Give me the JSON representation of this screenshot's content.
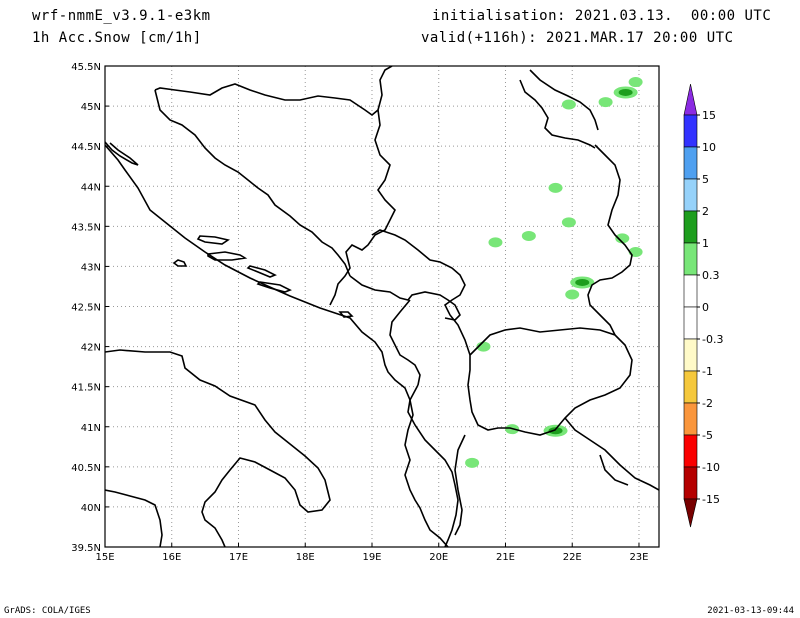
{
  "header": {
    "model": "wrf-nmmE_v3.9.1-e3km",
    "variable": "1h Acc.Snow [cm/1h]",
    "initialisation": "initialisation: 2021.03.13.  00:00 UTC",
    "valid": "valid(+116h): 2021.MAR.17 20:00 UTC"
  },
  "footer": {
    "left": "GrADS: COLA/IGES",
    "right": "2021-03-13-09:44"
  },
  "map": {
    "lon_range": [
      15,
      23.3
    ],
    "lat_range": [
      39.5,
      45.5
    ],
    "lon_ticks": [
      "15E",
      "16E",
      "17E",
      "18E",
      "19E",
      "20E",
      "21E",
      "22E",
      "23E"
    ],
    "lat_ticks": [
      "45.5N",
      "45N",
      "44.5N",
      "44N",
      "43.5N",
      "43N",
      "42.5N",
      "42N",
      "41.5N",
      "41N",
      "40.5N",
      "40N",
      "39.5N"
    ],
    "grid": true,
    "snow_areas": [
      {
        "lon": 22.8,
        "lat": 45.17,
        "level": "1-2"
      },
      {
        "lon": 22.95,
        "lat": 45.3,
        "level": "0.3-1"
      },
      {
        "lon": 22.5,
        "lat": 45.05,
        "level": "0.3-1"
      },
      {
        "lon": 21.95,
        "lat": 45.02,
        "level": "0.3-1"
      },
      {
        "lon": 21.75,
        "lat": 43.98,
        "level": "0.3-1"
      },
      {
        "lon": 22.15,
        "lat": 42.8,
        "level": "1-2"
      },
      {
        "lon": 22.0,
        "lat": 42.65,
        "level": "0.3-1"
      },
      {
        "lon": 22.75,
        "lat": 43.35,
        "level": "0.3-1"
      },
      {
        "lon": 22.95,
        "lat": 43.18,
        "level": "0.3-1"
      },
      {
        "lon": 21.75,
        "lat": 40.95,
        "level": "1-2"
      },
      {
        "lon": 21.1,
        "lat": 40.97,
        "level": "0.3-1"
      },
      {
        "lon": 20.67,
        "lat": 42.0,
        "level": "0.3-1"
      },
      {
        "lon": 20.5,
        "lat": 40.55,
        "level": "0.3-1"
      },
      {
        "lon": 21.95,
        "lat": 43.55,
        "level": "0.3-1"
      },
      {
        "lon": 21.35,
        "lat": 43.38,
        "level": "0.3-1"
      },
      {
        "lon": 20.85,
        "lat": 43.3,
        "level": "0.3-1"
      }
    ]
  },
  "colorbar": {
    "labels": [
      "15",
      "10",
      "5",
      "2",
      "1",
      "0.3",
      "0",
      "-0.3",
      "-1",
      "-2",
      "-5",
      "-10",
      "-15"
    ],
    "colors": [
      "#8b2be2",
      "#3232ff",
      "#4fa0f0",
      "#96d2fa",
      "#1e9e1e",
      "#78e678",
      "#ffffff",
      "#ffffff",
      "#fffac8",
      "#f5c83c",
      "#fa963c",
      "#fa0000",
      "#b40000",
      "#780000"
    ]
  }
}
